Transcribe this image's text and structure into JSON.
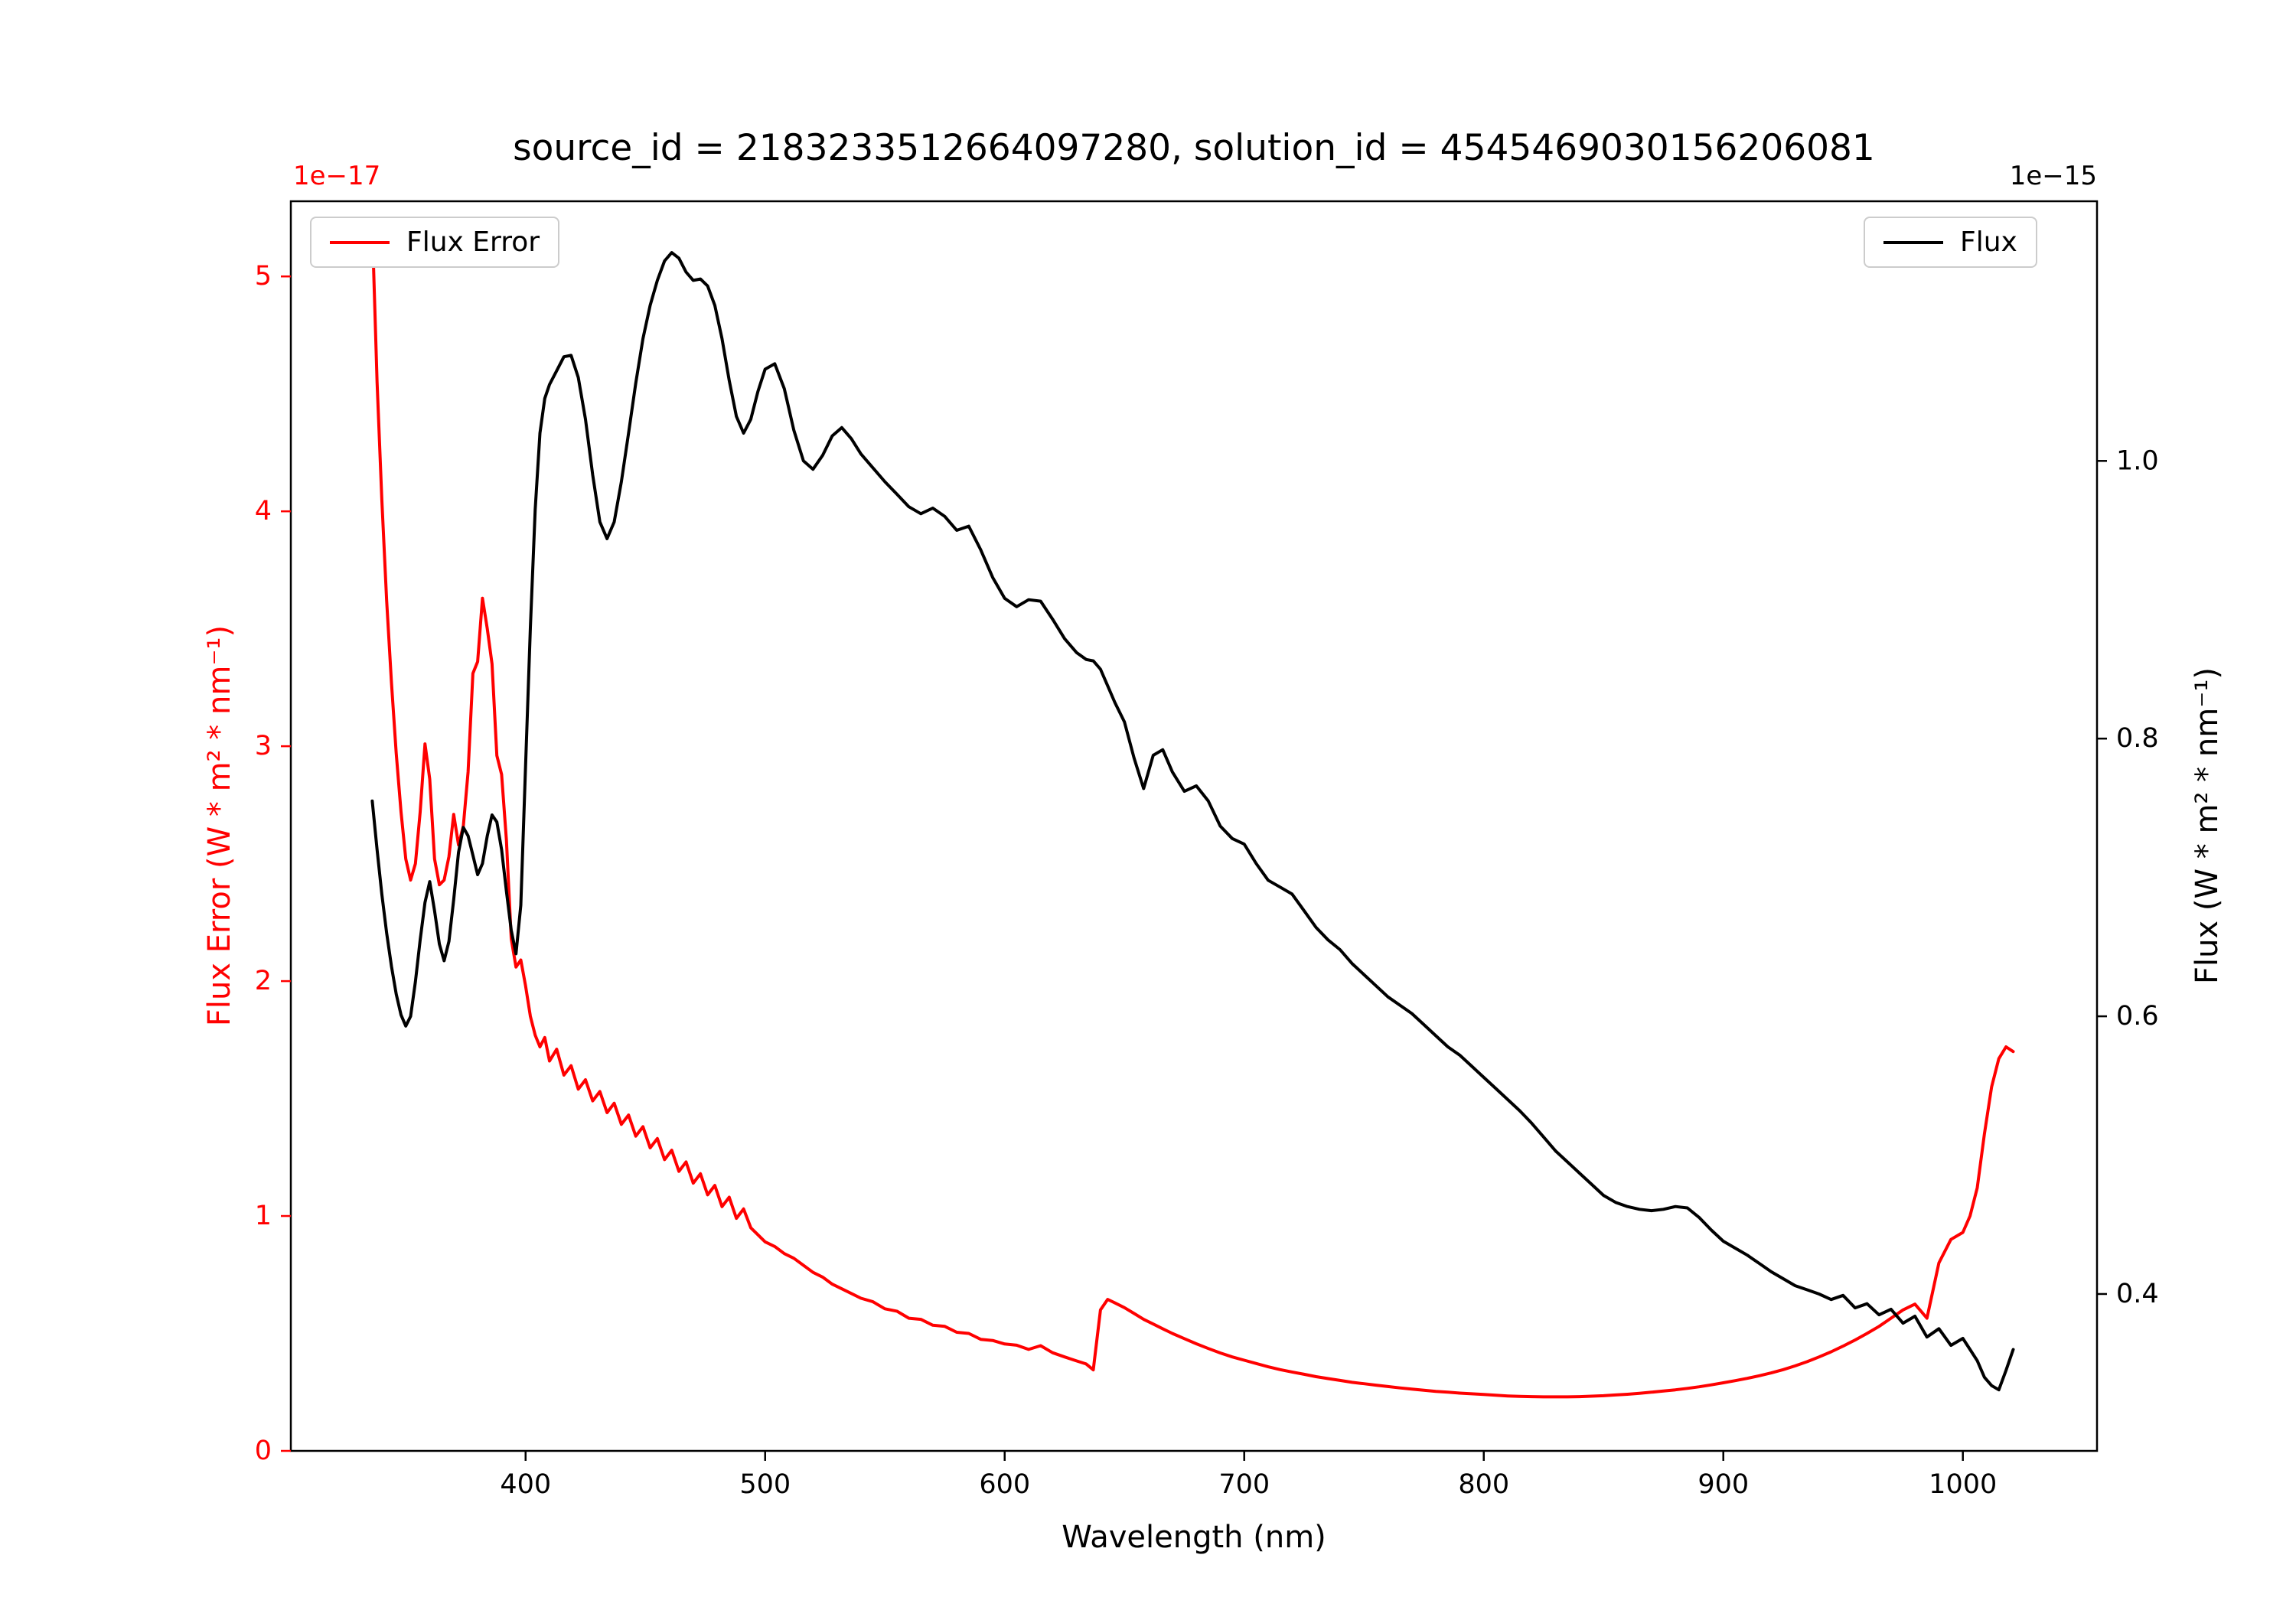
{
  "figure": {
    "background": "#ffffff"
  },
  "chart_data": {
    "type": "line",
    "title": "source_id = 2183233512664097280, solution_id = 4545469030156206081",
    "grid": false,
    "axes": {
      "x": {
        "label": "Wavelength (nm)",
        "lim": [
          302,
          1056
        ],
        "tick_values": [
          400,
          500,
          600,
          700,
          800,
          900,
          1000
        ],
        "tick_labels": [
          "400",
          "500",
          "600",
          "700",
          "800",
          "900",
          "1000"
        ]
      },
      "left": {
        "label": "Flux Error (W * m² * nm⁻¹)",
        "color": "#ff0000",
        "offset_text": "1e−17",
        "lim": [
          0,
          5.32
        ],
        "tick_values": [
          0,
          1,
          2,
          3,
          4,
          5
        ],
        "tick_labels": [
          "0",
          "1",
          "2",
          "3",
          "4",
          "5"
        ]
      },
      "right": {
        "label": "Flux (W * m² * nm⁻¹)",
        "color": "#000000",
        "offset_text": "1e−15",
        "lim": [
          0.287,
          1.187
        ],
        "tick_values": [
          0.4,
          0.6,
          0.8,
          1.0
        ],
        "tick_labels": [
          "0.4",
          "0.6",
          "0.8",
          "1.0"
        ]
      }
    },
    "legends": [
      {
        "label": "Flux Error",
        "color": "#ff0000",
        "position": "upper left"
      },
      {
        "label": "Flux",
        "color": "#000000",
        "position": "upper right"
      }
    ],
    "x": [
      336,
      338,
      340,
      342,
      344,
      346,
      348,
      350,
      352,
      354,
      356,
      358,
      360,
      362,
      364,
      366,
      368,
      370,
      372,
      374,
      376,
      378,
      380,
      382,
      384,
      386,
      388,
      390,
      392,
      394,
      396,
      398,
      400,
      402,
      404,
      406,
      408,
      410,
      413,
      416,
      419,
      422,
      425,
      428,
      431,
      434,
      437,
      440,
      443,
      446,
      449,
      452,
      455,
      458,
      461,
      464,
      467,
      470,
      473,
      476,
      479,
      482,
      485,
      488,
      491,
      494,
      497,
      500,
      504,
      508,
      512,
      516,
      520,
      524,
      528,
      532,
      536,
      540,
      545,
      550,
      555,
      560,
      565,
      570,
      575,
      580,
      585,
      590,
      595,
      600,
      605,
      610,
      615,
      620,
      625,
      630,
      634,
      637,
      640,
      643,
      646,
      650,
      654,
      658,
      662,
      666,
      670,
      675,
      680,
      685,
      690,
      695,
      700,
      705,
      710,
      715,
      720,
      725,
      730,
      735,
      740,
      745,
      750,
      755,
      760,
      765,
      770,
      775,
      780,
      785,
      790,
      795,
      800,
      805,
      810,
      815,
      820,
      825,
      830,
      835,
      840,
      845,
      850,
      855,
      860,
      865,
      870,
      875,
      880,
      885,
      890,
      895,
      900,
      905,
      910,
      915,
      920,
      925,
      930,
      935,
      940,
      945,
      950,
      955,
      960,
      965,
      970,
      975,
      980,
      985,
      990,
      995,
      1000,
      1003,
      1006,
      1009,
      1012,
      1015,
      1018,
      1021
    ],
    "series": [
      {
        "name": "Flux Error",
        "axis": "left",
        "color": "#ff0000",
        "unit_scale": "1e-17 W * m^2 * nm^-1",
        "y": [
          5.22,
          4.55,
          4.05,
          3.62,
          3.27,
          2.97,
          2.72,
          2.52,
          2.43,
          2.5,
          2.72,
          3.01,
          2.86,
          2.52,
          2.41,
          2.43,
          2.53,
          2.71,
          2.58,
          2.66,
          2.89,
          3.31,
          3.36,
          3.63,
          3.5,
          3.35,
          2.96,
          2.88,
          2.6,
          2.18,
          2.06,
          2.09,
          1.98,
          1.85,
          1.77,
          1.72,
          1.76,
          1.66,
          1.71,
          1.6,
          1.64,
          1.54,
          1.58,
          1.49,
          1.53,
          1.44,
          1.48,
          1.39,
          1.43,
          1.34,
          1.38,
          1.29,
          1.33,
          1.24,
          1.28,
          1.19,
          1.23,
          1.14,
          1.18,
          1.09,
          1.13,
          1.04,
          1.08,
          0.99,
          1.03,
          0.95,
          0.92,
          0.89,
          0.87,
          0.84,
          0.82,
          0.79,
          0.76,
          0.74,
          0.71,
          0.69,
          0.67,
          0.65,
          0.635,
          0.605,
          0.595,
          0.565,
          0.56,
          0.535,
          0.53,
          0.505,
          0.5,
          0.475,
          0.47,
          0.455,
          0.45,
          0.432,
          0.448,
          0.418,
          0.4,
          0.383,
          0.37,
          0.345,
          0.6,
          0.645,
          0.63,
          0.61,
          0.585,
          0.56,
          0.54,
          0.52,
          0.5,
          0.478,
          0.456,
          0.436,
          0.417,
          0.4,
          0.386,
          0.372,
          0.358,
          0.346,
          0.336,
          0.326,
          0.316,
          0.308,
          0.3,
          0.292,
          0.286,
          0.28,
          0.274,
          0.268,
          0.263,
          0.258,
          0.253,
          0.25,
          0.246,
          0.243,
          0.24,
          0.237,
          0.234,
          0.232,
          0.231,
          0.23,
          0.23,
          0.23,
          0.231,
          0.233,
          0.235,
          0.238,
          0.241,
          0.245,
          0.25,
          0.255,
          0.26,
          0.266,
          0.273,
          0.281,
          0.29,
          0.299,
          0.309,
          0.32,
          0.332,
          0.346,
          0.362,
          0.38,
          0.4,
          0.422,
          0.446,
          0.472,
          0.5,
          0.53,
          0.565,
          0.6,
          0.625,
          0.565,
          0.8,
          0.9,
          0.93,
          1.0,
          1.12,
          1.35,
          1.55,
          1.67,
          1.72,
          1.7
        ]
      },
      {
        "name": "Flux",
        "axis": "right",
        "color": "#000000",
        "unit_scale": "1e-15 W * m^2 * nm^-1",
        "y": [
          0.755,
          0.72,
          0.688,
          0.66,
          0.636,
          0.616,
          0.601,
          0.593,
          0.6,
          0.625,
          0.655,
          0.682,
          0.697,
          0.676,
          0.652,
          0.64,
          0.654,
          0.684,
          0.718,
          0.736,
          0.73,
          0.716,
          0.702,
          0.71,
          0.73,
          0.745,
          0.74,
          0.72,
          0.69,
          0.662,
          0.645,
          0.68,
          0.78,
          0.88,
          0.965,
          1.02,
          1.045,
          1.055,
          1.065,
          1.075,
          1.076,
          1.06,
          1.03,
          0.99,
          0.956,
          0.944,
          0.956,
          0.985,
          1.02,
          1.056,
          1.088,
          1.112,
          1.13,
          1.144,
          1.15,
          1.146,
          1.136,
          1.13,
          1.131,
          1.126,
          1.112,
          1.088,
          1.058,
          1.032,
          1.02,
          1.03,
          1.05,
          1.066,
          1.07,
          1.052,
          1.022,
          1.0,
          0.994,
          1.004,
          1.018,
          1.024,
          1.016,
          1.005,
          0.995,
          0.985,
          0.976,
          0.967,
          0.962,
          0.966,
          0.96,
          0.95,
          0.953,
          0.936,
          0.916,
          0.901,
          0.895,
          0.9,
          0.899,
          0.886,
          0.872,
          0.862,
          0.857,
          0.856,
          0.85,
          0.838,
          0.826,
          0.812,
          0.786,
          0.764,
          0.788,
          0.792,
          0.776,
          0.762,
          0.766,
          0.755,
          0.737,
          0.728,
          0.724,
          0.71,
          0.698,
          0.693,
          0.688,
          0.676,
          0.664,
          0.655,
          0.648,
          0.638,
          0.63,
          0.622,
          0.614,
          0.608,
          0.602,
          0.594,
          0.586,
          0.578,
          0.572,
          0.564,
          0.556,
          0.548,
          0.54,
          0.532,
          0.523,
          0.513,
          0.503,
          0.495,
          0.487,
          0.479,
          0.471,
          0.466,
          0.463,
          0.461,
          0.46,
          0.461,
          0.463,
          0.462,
          0.455,
          0.446,
          0.438,
          0.433,
          0.428,
          0.422,
          0.416,
          0.411,
          0.406,
          0.403,
          0.4,
          0.396,
          0.399,
          0.39,
          0.393,
          0.385,
          0.389,
          0.379,
          0.384,
          0.369,
          0.375,
          0.363,
          0.368,
          0.36,
          0.352,
          0.34,
          0.334,
          0.331,
          0.345,
          0.36
        ]
      }
    ]
  }
}
